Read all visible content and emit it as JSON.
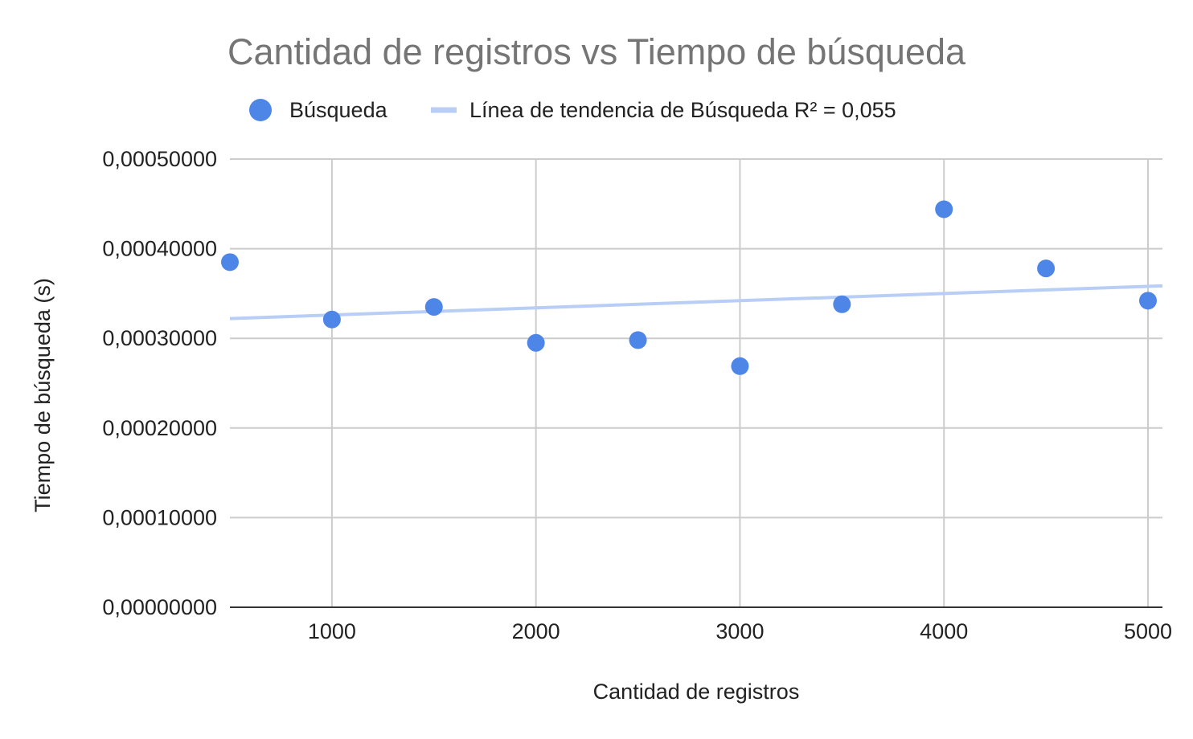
{
  "chart_data": {
    "type": "scatter",
    "title": "Cantidad de registros vs Tiempo de búsqueda",
    "xlabel": "Cantidad de registros",
    "ylabel": "Tiempo de búsqueda (s)",
    "xlim": [
      500,
      5000
    ],
    "ylim": [
      0,
      0.0005
    ],
    "x_ticks": [
      1000,
      2000,
      3000,
      4000,
      5000
    ],
    "x_tick_labels": [
      "1000",
      "2000",
      "3000",
      "4000",
      "5000"
    ],
    "y_ticks": [
      0,
      0.0001,
      0.0002,
      0.0003,
      0.0004,
      0.0005
    ],
    "y_tick_labels": [
      "0,00000000",
      "0,00010000",
      "0,00020000",
      "0,00030000",
      "0,00040000",
      "0,00050000"
    ],
    "grid": true,
    "legend_position": "top",
    "series": [
      {
        "name": "Búsqueda",
        "color": "#4e86e8",
        "x": [
          500,
          1000,
          1500,
          2000,
          2500,
          3000,
          3500,
          4000,
          4500,
          5000
        ],
        "y": [
          0.000385,
          0.000321,
          0.000335,
          0.000295,
          0.000298,
          0.000269,
          0.000338,
          0.000444,
          0.000378,
          0.000342
        ]
      }
    ],
    "trendline": {
      "label": "Línea de tendencia de Búsqueda R² = 0,055",
      "color": "#b8cef6",
      "x": [
        500,
        5000
      ],
      "y": [
        0.000322,
        0.000358
      ]
    }
  }
}
